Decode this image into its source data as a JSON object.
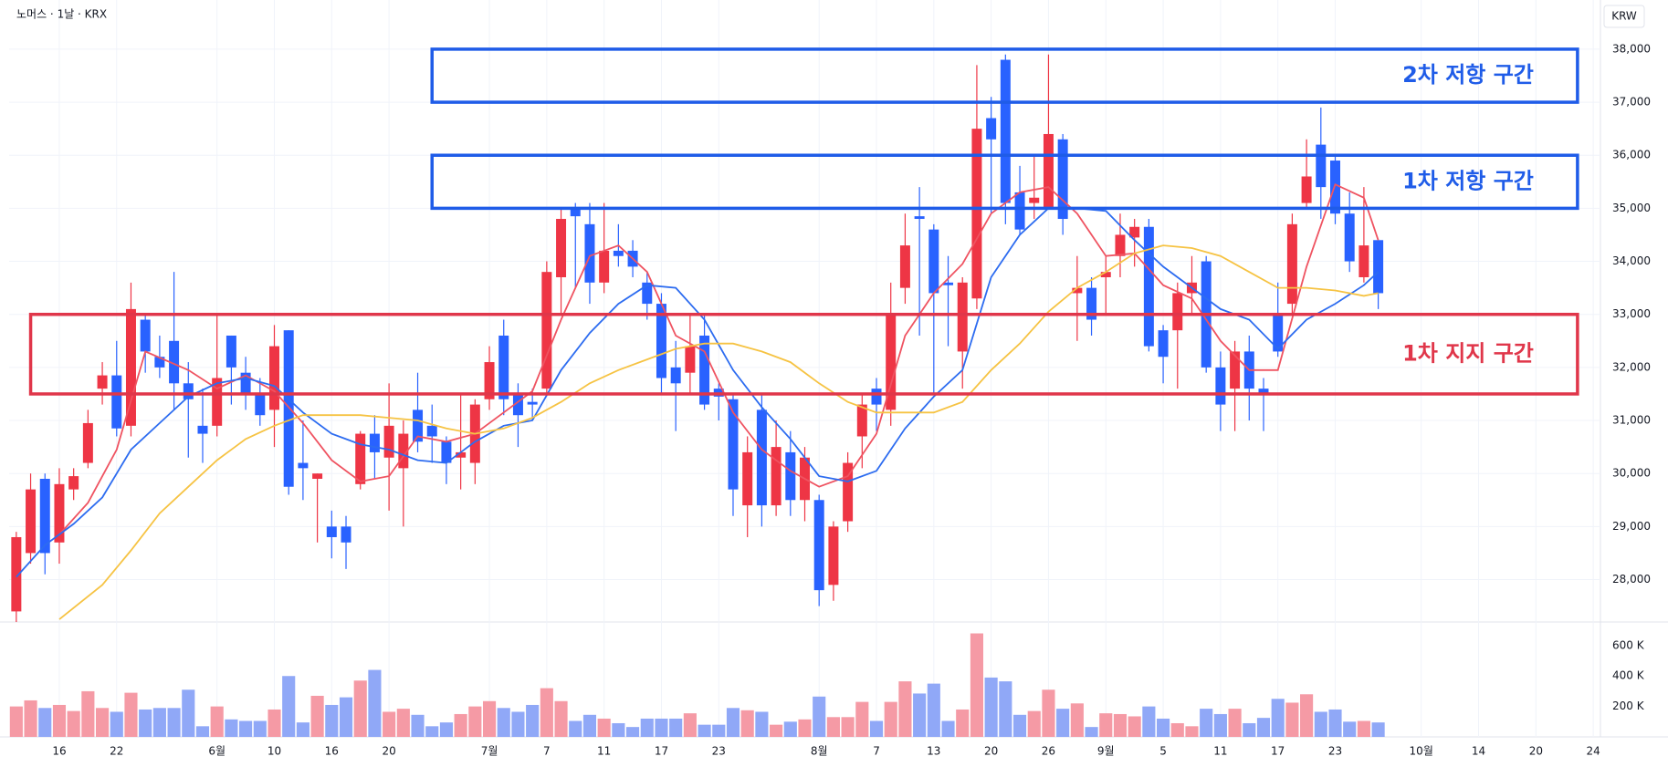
{
  "chart_data": {
    "type": "candlestick",
    "title": "노머스 · 1날 · KRX",
    "currency": "KRW",
    "up_color": "#ee3545",
    "down_color": "#2962ff",
    "volume_up_color": "#f59aa5",
    "volume_down_color": "#90a8f7",
    "grid": true,
    "xlim": [
      -0.5,
      110.5
    ],
    "xticks": [
      {
        "value": 3,
        "label": "16"
      },
      {
        "value": 7,
        "label": "22"
      },
      {
        "value": 14,
        "label": "6월"
      },
      {
        "value": 18,
        "label": "10"
      },
      {
        "value": 22,
        "label": "16"
      },
      {
        "value": 26,
        "label": "20"
      },
      {
        "value": 33,
        "label": "7월"
      },
      {
        "value": 37,
        "label": "7"
      },
      {
        "value": 41,
        "label": "11"
      },
      {
        "value": 45,
        "label": "17"
      },
      {
        "value": 49,
        "label": "23"
      },
      {
        "value": 56,
        "label": "8월"
      },
      {
        "value": 60,
        "label": "7"
      },
      {
        "value": 64,
        "label": "13"
      },
      {
        "value": 68,
        "label": "20"
      },
      {
        "value": 72,
        "label": "26"
      },
      {
        "value": 76,
        "label": "9월"
      },
      {
        "value": 80,
        "label": "5"
      },
      {
        "value": 84,
        "label": "11"
      },
      {
        "value": 88,
        "label": "17"
      },
      {
        "value": 92,
        "label": "23"
      },
      {
        "value": 98,
        "label": "10월"
      },
      {
        "value": 102,
        "label": "14"
      },
      {
        "value": 106,
        "label": "20"
      },
      {
        "value": 110,
        "label": "24"
      }
    ],
    "ylim": [
      27235,
      38927
    ],
    "yticks": [
      {
        "value": 28000,
        "label": "28,000"
      },
      {
        "value": 29000,
        "label": "29,000"
      },
      {
        "value": 30000,
        "label": "30,000"
      },
      {
        "value": 31000,
        "label": "31,000"
      },
      {
        "value": 32000,
        "label": "32,000"
      },
      {
        "value": 33000,
        "label": "33,000"
      },
      {
        "value": 34000,
        "label": "34,000"
      },
      {
        "value": 35000,
        "label": "35,000"
      },
      {
        "value": 36000,
        "label": "36,000"
      },
      {
        "value": 37000,
        "label": "37,000"
      },
      {
        "value": 38000,
        "label": "38,000"
      }
    ],
    "volume_ylim": [
      0,
      743000
    ],
    "volume_ticks": [
      {
        "value": 200000,
        "label": "200 K"
      },
      {
        "value": 400000,
        "label": "400 K"
      },
      {
        "value": 600000,
        "label": "600 K"
      }
    ],
    "open": [
      27400,
      28500,
      29900,
      28700,
      29700,
      30200,
      31600,
      31850,
      30900,
      32900,
      32200,
      32500,
      31700,
      30900,
      30900,
      32600,
      31900,
      31500,
      31200,
      32700,
      30200,
      29900,
      29000,
      29000,
      29800,
      30750,
      30300,
      30100,
      31200,
      30900,
      30600,
      30300,
      30200,
      31400,
      32600,
      31500,
      31350,
      31600,
      33700,
      35000,
      34700,
      33600,
      34200,
      34200,
      33600,
      33200,
      32000,
      31900,
      32600,
      31600,
      31400,
      29400,
      31200,
      29400,
      30400,
      29500,
      29500,
      27900,
      29100,
      30700,
      31600,
      31200,
      33500,
      34850,
      34600,
      33600,
      32300,
      33300,
      36700,
      37800,
      35300,
      35100,
      35000,
      36300,
      33400,
      33500,
      33700,
      34100,
      34450,
      34650,
      32700,
      32700,
      33400,
      34000,
      32000,
      31600,
      32300,
      31600,
      33000,
      33200,
      35100,
      36200,
      35900,
      34900,
      33700,
      34400
    ],
    "high": [
      28900,
      30000,
      30000,
      30100,
      30100,
      31200,
      32100,
      32500,
      33600,
      33000,
      32600,
      33800,
      32100,
      31600,
      33000,
      32600,
      32200,
      31800,
      32800,
      32700,
      31000,
      30000,
      29300,
      29200,
      30800,
      31100,
      31700,
      31000,
      31900,
      31300,
      30700,
      31500,
      31400,
      32400,
      32900,
      31700,
      31600,
      34000,
      35000,
      35100,
      35100,
      35100,
      34700,
      34400,
      33800,
      33400,
      32500,
      33000,
      33000,
      31700,
      31500,
      30700,
      31500,
      31000,
      30800,
      30500,
      29600,
      29100,
      30400,
      31500,
      31800,
      33600,
      34900,
      35400,
      34700,
      34100,
      33700,
      37700,
      37100,
      37900,
      35800,
      36000,
      37900,
      36400,
      34100,
      33700,
      34100,
      34900,
      34800,
      34800,
      32800,
      33600,
      34100,
      34100,
      32300,
      32500,
      32600,
      31800,
      33600,
      34900,
      36300,
      36900,
      36000,
      35300,
      35400,
      34400
    ],
    "low": [
      27200,
      28300,
      28100,
      28300,
      29500,
      30100,
      31300,
      30700,
      30700,
      31900,
      31800,
      31200,
      30300,
      30200,
      30700,
      31300,
      31200,
      30900,
      30500,
      29600,
      29500,
      28700,
      28400,
      28200,
      29700,
      29900,
      29300,
      29000,
      30400,
      30200,
      29800,
      29700,
      29800,
      31200,
      31100,
      30500,
      31000,
      31500,
      33000,
      33500,
      33200,
      33400,
      33900,
      33700,
      32900,
      31500,
      30800,
      31500,
      31200,
      31000,
      29200,
      28800,
      29000,
      29200,
      29200,
      29100,
      27500,
      27600,
      28900,
      30100,
      30800,
      30900,
      33200,
      32600,
      31500,
      32400,
      31600,
      33100,
      34900,
      34700,
      34500,
      34800,
      35000,
      34500,
      32500,
      32600,
      33000,
      33700,
      33900,
      32300,
      31700,
      31600,
      33000,
      31900,
      30800,
      30800,
      31000,
      30800,
      32200,
      33000,
      35000,
      34800,
      34700,
      33800,
      33600,
      33100
    ],
    "close": [
      28800,
      29700,
      28500,
      29800,
      29950,
      30950,
      31850,
      30850,
      33100,
      32300,
      32000,
      31700,
      31400,
      30750,
      31800,
      32000,
      31500,
      31100,
      32400,
      29750,
      30100,
      30000,
      28800,
      28700,
      30750,
      30400,
      30900,
      30750,
      30600,
      30700,
      30200,
      30400,
      31300,
      32100,
      31400,
      31100,
      31300,
      33800,
      34800,
      34850,
      33600,
      34200,
      34100,
      33900,
      33200,
      31800,
      31700,
      32400,
      31300,
      31450,
      29700,
      30400,
      29400,
      30500,
      29500,
      30300,
      27800,
      29000,
      30200,
      31300,
      31300,
      33000,
      34300,
      34800,
      33400,
      33550,
      33600,
      36500,
      36300,
      35100,
      34600,
      35200,
      36400,
      34800,
      33500,
      32900,
      33800,
      34500,
      34650,
      32400,
      32200,
      33400,
      33600,
      32000,
      31300,
      32300,
      31600,
      31500,
      32300,
      34700,
      35600,
      35400,
      34900,
      34000,
      34300,
      33400
    ],
    "volume": [
      200000,
      240000,
      190000,
      210000,
      170000,
      300000,
      190000,
      165000,
      290000,
      180000,
      190000,
      190000,
      310000,
      70000,
      200000,
      115000,
      105000,
      105000,
      180000,
      400000,
      95000,
      270000,
      210000,
      260000,
      370000,
      440000,
      165000,
      185000,
      145000,
      70000,
      95000,
      150000,
      200000,
      235000,
      190000,
      165000,
      210000,
      320000,
      235000,
      105000,
      145000,
      120000,
      90000,
      65000,
      120000,
      120000,
      120000,
      155000,
      80000,
      80000,
      190000,
      175000,
      165000,
      80000,
      100000,
      115000,
      265000,
      130000,
      130000,
      230000,
      105000,
      230000,
      365000,
      285000,
      350000,
      105000,
      180000,
      680000,
      390000,
      365000,
      145000,
      170000,
      310000,
      185000,
      220000,
      65000,
      155000,
      150000,
      135000,
      200000,
      120000,
      90000,
      70000,
      185000,
      150000,
      185000,
      90000,
      125000,
      250000,
      225000,
      280000,
      165000,
      180000,
      100000,
      105000,
      95000
    ],
    "moving_averages": [
      {
        "color": "#ef5361",
        "x": [
          3,
          5,
          7,
          9,
          12,
          14,
          16,
          18,
          20,
          22,
          24,
          26,
          28,
          30,
          32,
          34,
          36,
          38,
          40,
          42,
          44,
          46,
          48,
          50,
          52,
          54,
          56,
          58,
          60,
          62,
          64,
          66,
          68,
          70,
          72,
          74,
          76,
          78,
          80,
          82,
          84,
          86,
          88,
          90,
          92,
          94,
          95
        ],
        "values": [
          28850,
          29450,
          30450,
          32300,
          31950,
          31600,
          31850,
          31550,
          30950,
          30250,
          29850,
          29950,
          30700,
          30600,
          30750,
          31150,
          31550,
          32900,
          34100,
          34300,
          33800,
          32600,
          32300,
          31150,
          30450,
          30050,
          29750,
          29950,
          30750,
          32600,
          33400,
          33950,
          34900,
          35300,
          35400,
          34900,
          34100,
          34150,
          33550,
          33300,
          32500,
          31950,
          31950,
          33900,
          35450,
          35200,
          34400
        ]
      },
      {
        "color": "#2d6cf0",
        "x": [
          0,
          2,
          4,
          6,
          8,
          10,
          12,
          14,
          16,
          18,
          20,
          22,
          24,
          26,
          28,
          30,
          32,
          34,
          36,
          38,
          40,
          42,
          44,
          46,
          48,
          50,
          52,
          54,
          56,
          58,
          60,
          62,
          64,
          66,
          68,
          70,
          72,
          74,
          76,
          78,
          80,
          82,
          84,
          86,
          88,
          90,
          92,
          94,
          95
        ],
        "values": [
          28050,
          28650,
          29050,
          29550,
          30450,
          30950,
          31450,
          31700,
          31800,
          31650,
          31150,
          30750,
          30550,
          30450,
          30250,
          30200,
          30600,
          30900,
          31000,
          31950,
          32650,
          33200,
          33550,
          33500,
          32900,
          31950,
          31250,
          30650,
          29950,
          29850,
          30050,
          30850,
          31450,
          31950,
          33700,
          34500,
          35000,
          35000,
          34950,
          34400,
          33900,
          33500,
          33100,
          32900,
          32350,
          32900,
          33200,
          33550,
          33800
        ]
      },
      {
        "color": "#f6c343",
        "x": [
          3,
          6,
          8,
          10,
          12,
          14,
          16,
          18,
          20,
          22,
          24,
          26,
          28,
          30,
          32,
          34,
          36,
          38,
          40,
          42,
          44,
          46,
          48,
          50,
          52,
          54,
          56,
          58,
          60,
          62,
          64,
          66,
          68,
          70,
          72,
          74,
          76,
          78,
          80,
          82,
          84,
          86,
          88,
          90,
          92,
          94,
          95
        ],
        "values": [
          27250,
          27900,
          28550,
          29250,
          29750,
          30250,
          30650,
          30900,
          31100,
          31100,
          31100,
          31050,
          31000,
          30850,
          30750,
          30850,
          31050,
          31350,
          31700,
          31950,
          32150,
          32350,
          32450,
          32450,
          32300,
          32100,
          31700,
          31350,
          31150,
          31150,
          31150,
          31350,
          31950,
          32450,
          33050,
          33500,
          33800,
          34150,
          34300,
          34250,
          34100,
          33800,
          33500,
          33500,
          33450,
          33350,
          33400
        ]
      }
    ],
    "zones": [
      {
        "label": "2차 저항 구간",
        "color": "#1f5ce8",
        "x0": 29,
        "x1": 108.9,
        "y0": 37000,
        "y1": 38000
      },
      {
        "label": "1차 저항 구간",
        "color": "#1f5ce8",
        "x0": 29,
        "x1": 108.9,
        "y0": 35000,
        "y1": 36000
      },
      {
        "label": "1차 지지 구간",
        "color": "#e0364a",
        "x0": 1,
        "x1": 108.9,
        "y0": 31500,
        "y1": 33000
      }
    ]
  }
}
